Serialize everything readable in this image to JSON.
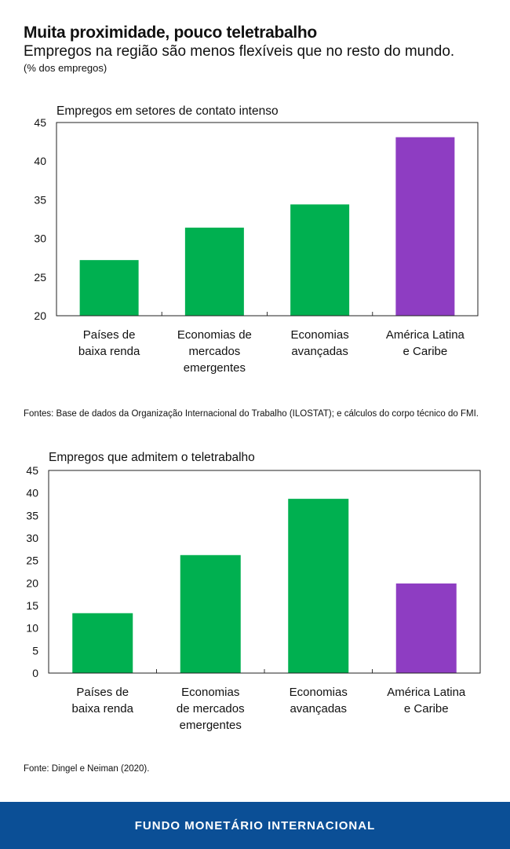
{
  "header": {
    "title": "Muita proximidade, pouco teletrabalho",
    "subtitle": "Empregos na região são menos flexíveis que no resto do mundo.",
    "unit": "(% dos empregos)"
  },
  "chart_data": [
    {
      "type": "bar",
      "title": "Empregos em setores de contato intenso",
      "categories": [
        [
          "Países de",
          "baixa renda"
        ],
        [
          "Economias de",
          "mercados",
          "emergentes"
        ],
        [
          "Economias",
          "avançadas"
        ],
        [
          "América Latina",
          "e Caribe"
        ]
      ],
      "values": [
        27.2,
        31.4,
        34.4,
        43.1
      ],
      "colors": [
        "#00b050",
        "#00b050",
        "#00b050",
        "#8e3dc2"
      ],
      "ylim": [
        20,
        45
      ],
      "yticks": [
        20,
        25,
        30,
        35,
        40,
        45
      ],
      "grid": false,
      "source": "Fontes: Base de dados da Organização Internacional do Trabalho (ILOSTAT); e cálculos do corpo técnico do FMI."
    },
    {
      "type": "bar",
      "title": "Empregos que admitem o teletrabalho",
      "categories": [
        [
          "Países de",
          "baixa renda"
        ],
        [
          "Economias",
          "de mercados",
          "emergentes"
        ],
        [
          "Economias",
          "avançadas"
        ],
        [
          "América Latina",
          "e Caribe"
        ]
      ],
      "values": [
        13.3,
        26.2,
        38.7,
        19.9
      ],
      "colors": [
        "#00b050",
        "#00b050",
        "#00b050",
        "#8e3dc2"
      ],
      "ylim": [
        0,
        45
      ],
      "yticks": [
        0,
        5,
        10,
        15,
        20,
        25,
        30,
        35,
        40,
        45
      ],
      "grid": false,
      "source": "Fonte: Dingel e Neiman (2020)."
    }
  ],
  "footer": {
    "label": "FUNDO MONETÁRIO INTERNACIONAL"
  }
}
